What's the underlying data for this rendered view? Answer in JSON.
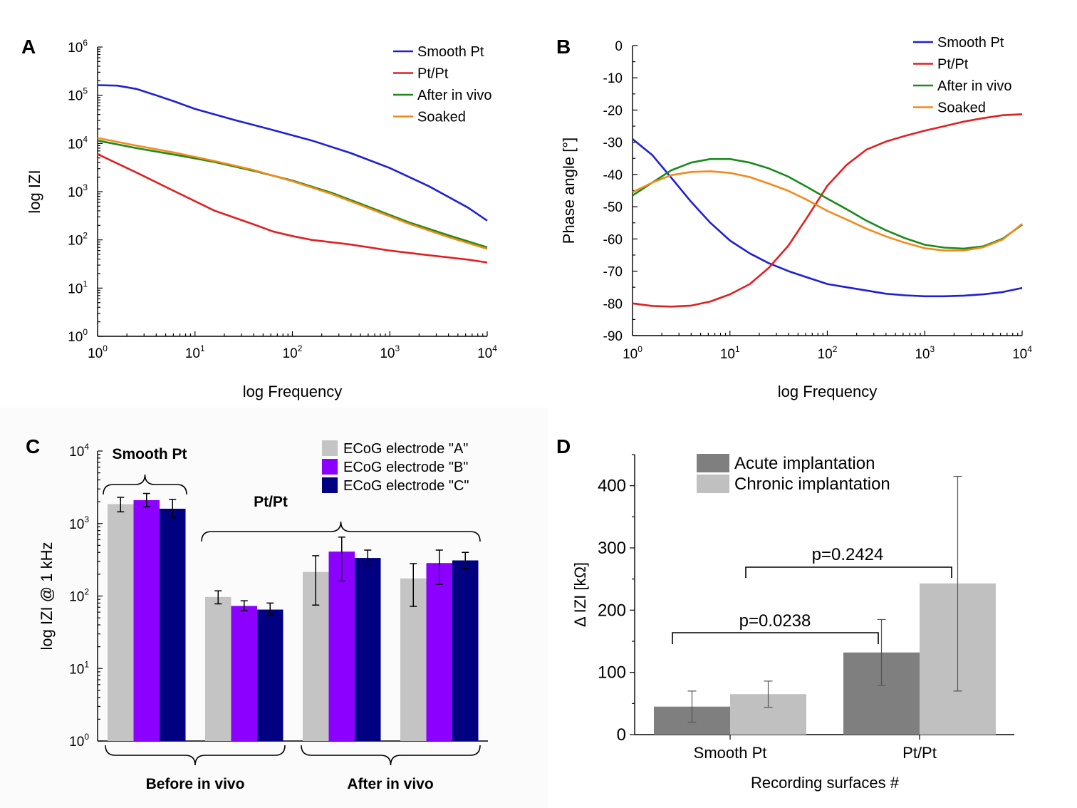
{
  "chart_data": [
    {
      "panel": "A",
      "type": "line",
      "xlabel": "log Frequency",
      "ylabel": "log IZI",
      "xscale": "log",
      "yscale": "log",
      "xlim": [
        1,
        10000
      ],
      "ylim": [
        1,
        1000000
      ],
      "x_tick_labels": [
        "10^0",
        "10^1",
        "10^2",
        "10^3",
        "10^4"
      ],
      "y_tick_labels": [
        "10^0",
        "10^1",
        "10^2",
        "10^3",
        "10^4",
        "10^5",
        "10^6"
      ],
      "legend_position": "top-right",
      "series": [
        {
          "name": "Smooth Pt",
          "color": "#1f1fd6",
          "x": [
            1,
            1.6,
            2.5,
            4,
            6.3,
            10,
            25,
            63,
            158,
            398,
            1000,
            2512,
            6310,
            10000
          ],
          "y": [
            162000,
            158000,
            135000,
            100000,
            73000,
            52000,
            31000,
            19000,
            11500,
            6300,
            3100,
            1300,
            470,
            250
          ]
        },
        {
          "name": "Pt/Pt",
          "color": "#e02020",
          "x": [
            1,
            2.5,
            6.3,
            16,
            40,
            63,
            100,
            158,
            398,
            1000,
            2512,
            6310,
            10000
          ],
          "y": [
            6000,
            2500,
            1000,
            400,
            210,
            150,
            120,
            100,
            80,
            60,
            48,
            39,
            34
          ]
        },
        {
          "name": "After in vivo",
          "color": "#1a8a1a",
          "x": [
            1,
            2.5,
            6.3,
            16,
            40,
            100,
            251,
            631,
            1585,
            3981,
            10000
          ],
          "y": [
            11500,
            8000,
            5800,
            4100,
            2700,
            1700,
            950,
            470,
            230,
            125,
            70
          ]
        },
        {
          "name": "Soaked",
          "color": "#f28a1a",
          "x": [
            1,
            2.5,
            6.3,
            16,
            40,
            100,
            251,
            631,
            1585,
            3981,
            10000
          ],
          "y": [
            13000,
            9000,
            6400,
            4300,
            2800,
            1650,
            900,
            440,
            215,
            115,
            65
          ]
        }
      ]
    },
    {
      "panel": "B",
      "type": "line",
      "xlabel": "log Frequency",
      "ylabel": "Phase angle [°]",
      "xscale": "log",
      "xlim": [
        1,
        10000
      ],
      "ylim": [
        -90,
        0
      ],
      "x_tick_labels": [
        "10^0",
        "10^1",
        "10^2",
        "10^3",
        "10^4"
      ],
      "y_tick_labels": [
        "0",
        "-10",
        "-20",
        "-30",
        "-40",
        "-50",
        "-60",
        "-70",
        "-80",
        "-90"
      ],
      "legend_position": "top-right",
      "series": [
        {
          "name": "Smooth Pt",
          "color": "#1f1fd6",
          "x": [
            1,
            1.6,
            2.5,
            4,
            6.3,
            10,
            16,
            25,
            40,
            63,
            100,
            158,
            251,
            398,
            631,
            1000,
            1585,
            2512,
            3981,
            6310,
            10000
          ],
          "y": [
            -29,
            -34,
            -41,
            -48.5,
            -55,
            -60.5,
            -64.5,
            -67.5,
            -70,
            -72,
            -74,
            -75,
            -76,
            -77,
            -77.5,
            -77.8,
            -77.8,
            -77.6,
            -77.2,
            -76.5,
            -75.2
          ]
        },
        {
          "name": "Pt/Pt",
          "color": "#e02020",
          "x": [
            1,
            1.6,
            2.5,
            4,
            6.3,
            10,
            16,
            25,
            40,
            63,
            100,
            158,
            251,
            398,
            631,
            1000,
            1585,
            2512,
            3981,
            6310,
            10000
          ],
          "y": [
            -80,
            -80.8,
            -81,
            -80.7,
            -79.4,
            -77.2,
            -74,
            -69,
            -62,
            -53,
            -43.5,
            -37,
            -32.3,
            -29.8,
            -28,
            -26.4,
            -25,
            -23.6,
            -22.5,
            -21.6,
            -21.3
          ]
        },
        {
          "name": "After in vivo",
          "color": "#1a8a1a",
          "x": [
            1,
            1.6,
            2.5,
            4,
            6.3,
            10,
            16,
            25,
            40,
            63,
            100,
            158,
            251,
            398,
            631,
            1000,
            1585,
            2512,
            3981,
            6310,
            10000
          ],
          "y": [
            -46.5,
            -42.5,
            -38.7,
            -36.3,
            -35.2,
            -35.2,
            -36.3,
            -38.1,
            -40.7,
            -44,
            -47.5,
            -50.8,
            -54.3,
            -57.3,
            -59.8,
            -61.8,
            -62.7,
            -63,
            -62.3,
            -59.9,
            -55.6
          ]
        },
        {
          "name": "Soaked",
          "color": "#f28a1a",
          "x": [
            1,
            1.6,
            2.5,
            4,
            6.3,
            10,
            16,
            25,
            40,
            63,
            100,
            158,
            251,
            398,
            631,
            1000,
            1585,
            2512,
            3981,
            6310,
            10000
          ],
          "y": [
            -45.5,
            -42.5,
            -40.2,
            -39.2,
            -39,
            -39.5,
            -40.8,
            -42.8,
            -45.1,
            -48,
            -51.3,
            -54,
            -56.8,
            -59.2,
            -61.2,
            -62.9,
            -63.6,
            -63.6,
            -62.6,
            -60.2,
            -55.3
          ]
        }
      ]
    },
    {
      "panel": "C",
      "type": "bar",
      "ylabel": "log IZI @ 1 kHz",
      "yscale": "log",
      "ylim": [
        1,
        10000
      ],
      "y_tick_labels": [
        "10^0",
        "10^1",
        "10^2",
        "10^3",
        "10^4"
      ],
      "legend_position": "top-right",
      "categories": [
        "Smooth Pt (Before in vivo)",
        "Pt/Pt (Before in vivo)",
        "Pt/Pt (After in vivo)",
        "Pt/Pt (After in vivo)"
      ],
      "series": [
        {
          "name": "ECoG electrode \"A\"",
          "color": "#c4c4c4",
          "values": [
            1850,
            97,
            215,
            175
          ],
          "err_low": [
            1450,
            78,
            75,
            72
          ],
          "err_high": [
            2300,
            118,
            360,
            280
          ]
        },
        {
          "name": "ECoG electrode \"B\"",
          "color": "#8b00ff",
          "values": [
            2100,
            73,
            410,
            285
          ],
          "err_low": [
            1700,
            63,
            160,
            145
          ],
          "err_high": [
            2600,
            86,
            650,
            430
          ]
        },
        {
          "name": "ECoG electrode \"C\"",
          "color": "#000080",
          "values": [
            1600,
            65,
            335,
            310
          ],
          "err_low": [
            1200,
            55,
            265,
            240
          ],
          "err_high": [
            2150,
            80,
            430,
            400
          ]
        }
      ],
      "group_labels": {
        "top_left": "Smooth Pt",
        "top_right": "Pt/Pt",
        "bottom_left": "Before in vivo",
        "bottom_right": "After in vivo"
      }
    },
    {
      "panel": "D",
      "type": "bar",
      "xlabel": "Recording surfaces #",
      "ylabel": "Δ IZI [kΩ]",
      "ylim": [
        0,
        450
      ],
      "y_tick_labels": [
        "0",
        "100",
        "200",
        "300",
        "400"
      ],
      "legend_position": "top-left",
      "categories": [
        "Smooth Pt",
        "Pt/Pt"
      ],
      "series": [
        {
          "name": "Acute implantation",
          "color": "#7f7f7f",
          "values": [
            45,
            132
          ],
          "err_low": [
            20,
            79
          ],
          "err_high": [
            70,
            185
          ]
        },
        {
          "name": "Chronic implantation",
          "color": "#c0c0c0",
          "values": [
            65,
            243
          ],
          "err_low": [
            44,
            70
          ],
          "err_high": [
            86,
            415
          ]
        }
      ],
      "annotations": [
        "p=0.0238",
        "p=0.2424"
      ]
    }
  ],
  "panel_letters": {
    "a": "A",
    "b": "B",
    "c": "C",
    "d": "D"
  }
}
